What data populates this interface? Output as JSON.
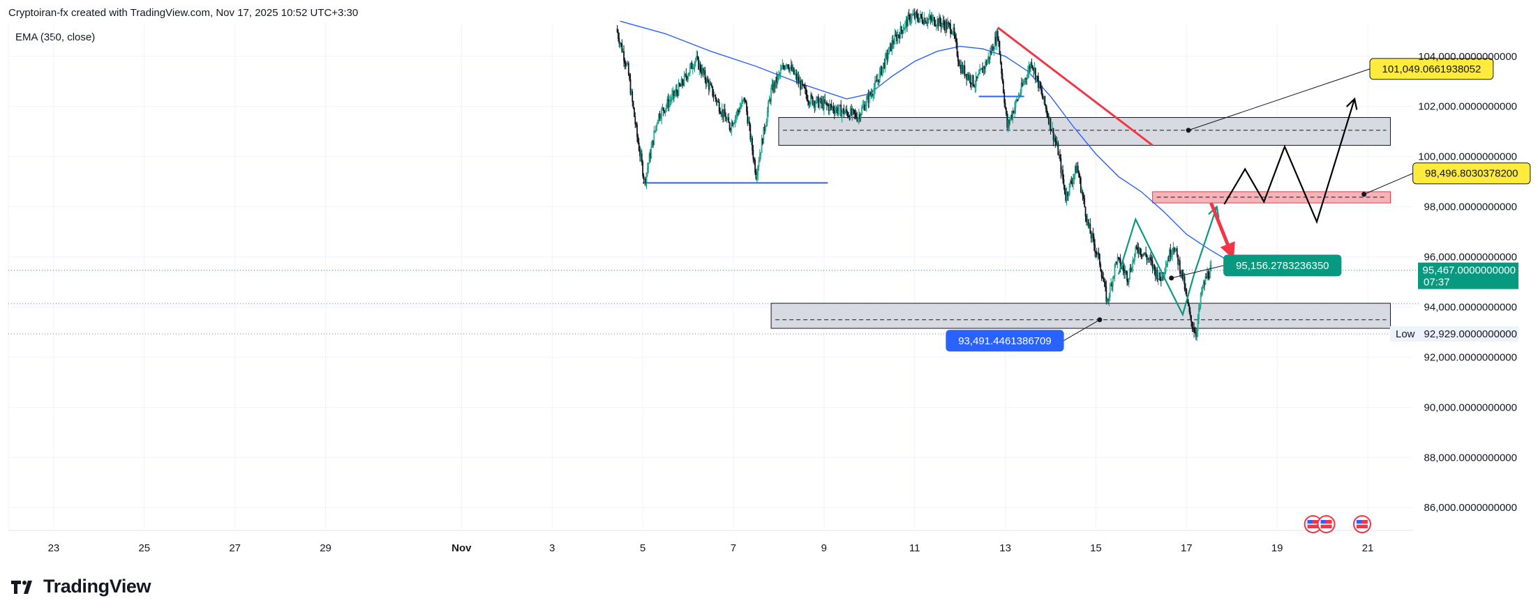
{
  "header": {
    "attribution": "Cryptoiran-fx created with TradingView.com, Nov 17, 2025 10:52 UTC+3:30",
    "indicator_legend": "EMA (350, close)"
  },
  "footer": {
    "brand": "TradingView"
  },
  "colors": {
    "candle_up": "#089981",
    "candle_down": "#131722",
    "ema": "#2962ff",
    "support_line": "#2962ff",
    "trend_line": "#f23645",
    "zone_fill": "#d1d4dc",
    "red_zone_fill": "#f7a6ad",
    "label_yellow": "#ffeb3b",
    "label_teal": "#089981",
    "label_blue": "#2962ff",
    "projection_teal": "#089981",
    "projection_black": "#000000",
    "arrow_red": "#f23645"
  },
  "chart_data": {
    "type": "candlestick",
    "symbol_note": "BTC/USD style price chart (4H-like)",
    "x_axis": {
      "tick_labels": [
        "23",
        "25",
        "27",
        "29",
        "Nov",
        "3",
        "5",
        "7",
        "9",
        "11",
        "13",
        "15",
        "17",
        "19",
        "21"
      ],
      "range": [
        "2025-10-22",
        "2025-11-22"
      ]
    },
    "y_axis": {
      "tick_labels": [
        "104,000.0000000000",
        "102,000.0000000000",
        "100,000.0000000000",
        "98,000.0000000000",
        "96,000.0000000000",
        "94,000.0000000000",
        "92,000.0000000000",
        "90,000.0000000000",
        "88,000.0000000000",
        "86,000.0000000000"
      ],
      "range": [
        85200,
        105300
      ]
    },
    "price_path": [
      {
        "t": "2025-11-04 10:00",
        "p": 105100
      },
      {
        "t": "2025-11-04 16:00",
        "p": 103500
      },
      {
        "t": "2025-11-04 21:00",
        "p": 100800
      },
      {
        "t": "2025-11-05 01:00",
        "p": 99000
      },
      {
        "t": "2025-11-05 08:00",
        "p": 101600
      },
      {
        "t": "2025-11-05 20:00",
        "p": 102800
      },
      {
        "t": "2025-11-06 04:00",
        "p": 103900
      },
      {
        "t": "2025-11-06 14:00",
        "p": 102400
      },
      {
        "t": "2025-11-06 22:00",
        "p": 101200
      },
      {
        "t": "2025-11-07 06:00",
        "p": 102300
      },
      {
        "t": "2025-11-07 12:00",
        "p": 99300
      },
      {
        "t": "2025-11-07 20:00",
        "p": 102600
      },
      {
        "t": "2025-11-08 04:00",
        "p": 103800
      },
      {
        "t": "2025-11-08 16:00",
        "p": 102300
      },
      {
        "t": "2025-11-09 06:00",
        "p": 101900
      },
      {
        "t": "2025-11-09 18:00",
        "p": 101600
      },
      {
        "t": "2025-11-10 03:00",
        "p": 102800
      },
      {
        "t": "2025-11-10 12:00",
        "p": 104500
      },
      {
        "t": "2025-11-10 22:00",
        "p": 105600
      },
      {
        "t": "2025-11-11 12:00",
        "p": 105400
      },
      {
        "t": "2025-11-11 20:00",
        "p": 105100
      },
      {
        "t": "2025-11-12 00:00",
        "p": 103600
      },
      {
        "t": "2025-11-12 08:00",
        "p": 102900
      },
      {
        "t": "2025-11-12 15:00",
        "p": 103900
      },
      {
        "t": "2025-11-12 20:00",
        "p": 104900
      },
      {
        "t": "2025-11-13 01:00",
        "p": 101200
      },
      {
        "t": "2025-11-13 08:00",
        "p": 102600
      },
      {
        "t": "2025-11-13 14:00",
        "p": 103800
      },
      {
        "t": "2025-11-13 22:00",
        "p": 101800
      },
      {
        "t": "2025-11-14 04:00",
        "p": 100200
      },
      {
        "t": "2025-11-14 08:00",
        "p": 98400
      },
      {
        "t": "2025-11-14 14:00",
        "p": 99600
      },
      {
        "t": "2025-11-14 20:00",
        "p": 97200
      },
      {
        "t": "2025-11-15 02:00",
        "p": 95800
      },
      {
        "t": "2025-11-15 06:00",
        "p": 94200
      },
      {
        "t": "2025-11-15 11:00",
        "p": 95900
      },
      {
        "t": "2025-11-15 17:00",
        "p": 95200
      },
      {
        "t": "2025-11-15 22:00",
        "p": 96400
      },
      {
        "t": "2025-11-16 04:00",
        "p": 95900
      },
      {
        "t": "2025-11-16 10:00",
        "p": 95100
      },
      {
        "t": "2025-11-16 17:00",
        "p": 96500
      },
      {
        "t": "2025-11-16 22:00",
        "p": 95200
      },
      {
        "t": "2025-11-17 02:00",
        "p": 93500
      },
      {
        "t": "2025-11-17 05:00",
        "p": 92950
      },
      {
        "t": "2025-11-17 08:00",
        "p": 94600
      },
      {
        "t": "2025-11-17 11:00",
        "p": 95300
      },
      {
        "t": "2025-11-17 13:00",
        "p": 95467
      }
    ],
    "ema_350": [
      {
        "t": "2025-11-04 12:00",
        "p": 105400
      },
      {
        "t": "2025-11-05 12:00",
        "p": 104900
      },
      {
        "t": "2025-11-06 12:00",
        "p": 104200
      },
      {
        "t": "2025-11-07 12:00",
        "p": 103600
      },
      {
        "t": "2025-11-08 12:00",
        "p": 102900
      },
      {
        "t": "2025-11-09 12:00",
        "p": 102300
      },
      {
        "t": "2025-11-10 00:00",
        "p": 102500
      },
      {
        "t": "2025-11-10 12:00",
        "p": 103200
      },
      {
        "t": "2025-11-11 00:00",
        "p": 103800
      },
      {
        "t": "2025-11-11 12:00",
        "p": 104200
      },
      {
        "t": "2025-11-12 00:00",
        "p": 104400
      },
      {
        "t": "2025-11-12 12:00",
        "p": 104300
      },
      {
        "t": "2025-11-13 00:00",
        "p": 104000
      },
      {
        "t": "2025-11-13 12:00",
        "p": 103400
      },
      {
        "t": "2025-11-14 00:00",
        "p": 102400
      },
      {
        "t": "2025-11-14 12:00",
        "p": 101200
      },
      {
        "t": "2025-11-15 00:00",
        "p": 100100
      },
      {
        "t": "2025-11-15 12:00",
        "p": 99200
      },
      {
        "t": "2025-11-16 00:00",
        "p": 98600
      },
      {
        "t": "2025-11-16 12:00",
        "p": 97800
      },
      {
        "t": "2025-11-17 00:00",
        "p": 96900
      },
      {
        "t": "2025-11-17 12:00",
        "p": 96300
      },
      {
        "t": "2025-11-17 21:00",
        "p": 95900
      }
    ],
    "current_price": {
      "value": "95,467.0000000000",
      "countdown": "07:37",
      "numeric": 95467
    },
    "low_marker": {
      "label": "Low",
      "value": "92,929.0000000000",
      "numeric": 92929
    },
    "dotted_levels": [
      95467,
      94130,
      92929
    ],
    "zones": [
      {
        "name": "upper-gray-zone",
        "from": "2025-11-08 00:00",
        "to": "2025-11-21 12:00",
        "high": 101560,
        "low": 100450,
        "mid": 101049
      },
      {
        "name": "red-zone",
        "from": "2025-11-16 06:00",
        "to": "2025-11-21 12:00",
        "high": 98600,
        "low": 98150,
        "mid": 98380
      },
      {
        "name": "lower-gray-zone",
        "from": "2025-11-07 20:00",
        "to": "2025-11-21 12:00",
        "high": 94150,
        "low": 93150,
        "mid": 93491
      }
    ],
    "support_lines": [
      {
        "from": "2025-11-05 00:00",
        "to": "2025-11-09 02:00",
        "p": 98950
      },
      {
        "from": "2025-11-12 10:00",
        "to": "2025-11-13 10:00",
        "p": 102400
      }
    ],
    "trend_line": {
      "from": [
        "2025-11-12 20:00",
        105150
      ],
      "to": [
        "2025-11-16 06:00",
        100450
      ]
    },
    "callouts": [
      {
        "text": "101,049.0661938052",
        "style": "yellow",
        "anchor": [
          "2025-11-17 01:00",
          101049
        ]
      },
      {
        "text": "98,496.8030378200",
        "style": "yellow",
        "anchor": [
          "2025-11-20 22:00",
          98496
        ]
      },
      {
        "text": "95,156.2783236350",
        "style": "teal",
        "anchor": [
          "2025-11-16 16:00",
          95156
        ]
      },
      {
        "text": "93,491.4461386709",
        "style": "blue",
        "anchor": [
          "2025-11-15 02:00",
          93491
        ]
      }
    ],
    "projection_teal": [
      [
        "2025-11-15 12:00",
        95300
      ],
      [
        "2025-11-15 21:00",
        97500
      ],
      [
        "2025-11-16 12:00",
        95200
      ],
      [
        "2025-11-16 22:00",
        93700
      ],
      [
        "2025-11-17 04:00",
        95300
      ],
      [
        "2025-11-17 16:00",
        98000
      ]
    ],
    "projection_black": [
      [
        "2025-11-17 20:00",
        98100
      ],
      [
        "2025-11-18 07:00",
        99500
      ],
      [
        "2025-11-18 17:00",
        98200
      ],
      [
        "2025-11-19 04:00",
        100400
      ],
      [
        "2025-11-19 21:00",
        97400
      ],
      [
        "2025-11-20 17:00",
        102300
      ]
    ],
    "red_arrow": {
      "from": [
        "2025-11-17 13:00",
        98150
      ],
      "to": [
        "2025-11-18 01:00",
        95900
      ]
    },
    "event_markers": [
      {
        "t": "2025-11-19 19:00",
        "icon": "us-flag-icon"
      },
      {
        "t": "2025-11-20 02:00",
        "icon": "us-flag-icon"
      },
      {
        "t": "2025-11-20 21:00",
        "icon": "us-flag-icon"
      }
    ]
  }
}
